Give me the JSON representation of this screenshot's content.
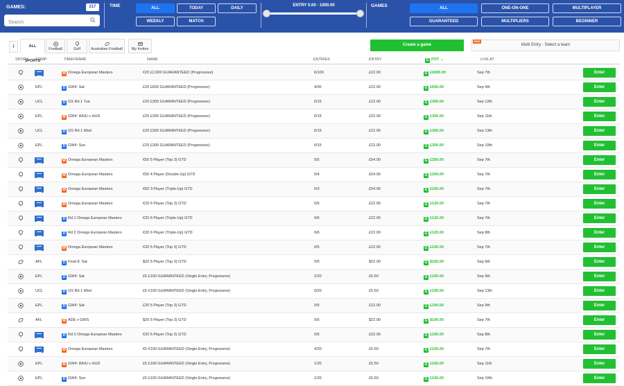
{
  "header": {
    "games_label": "GAMES:",
    "games_count": "217",
    "search_placeholder": "Search",
    "time_label": "TIME",
    "time_filters": [
      "ALL",
      "TODAY",
      "DAILY",
      "WEEKLY",
      "MATCH"
    ],
    "entry_label": "ENTRY 0.00 - 1000.00",
    "games_filter_label": "GAMES",
    "game_filters": [
      "ALL",
      "ONE-ON-ONE",
      "MULTIPLAYER",
      "GUARANTEED",
      "MULTIPLIERS",
      "BEGINNER"
    ],
    "active_time_filter": "ALL",
    "active_game_filter": "ALL"
  },
  "tabs": {
    "info": "i",
    "items": [
      "ALL SPORTS",
      "Football",
      "Golf",
      "Australian Football",
      "My Invites"
    ],
    "active": "ALL SPORTS"
  },
  "actions": {
    "create_label": "Create a game",
    "multi_entry_label": "Multi Entry - Select a team",
    "new_badge": "NEW"
  },
  "table": {
    "headers": {
      "sport": "SPORT",
      "comp": "COMP",
      "timeframe": "TIMEFRAME",
      "name": "NAME",
      "entries": "ENTRIES",
      "entry": "ENTRY",
      "pot": "POT",
      "live_at": "LIVE AT"
    },
    "enter_label": "Enter",
    "rows": [
      {
        "sport": "golf",
        "comp": "",
        "tf_badge": "W",
        "timeframe": "Omega European Masters",
        "name": "€20 £2,000 GUARANTEED (Progressive)",
        "entries": "6/100",
        "entry": "£22.00",
        "pot": "£2000.00",
        "live": "Sep 7th"
      },
      {
        "sport": "football",
        "comp": "EPL",
        "tf_badge": "D",
        "timeframe": "GW4: Sat",
        "name": "£20 £600 GUARANTEED (Progressive)",
        "entries": "4/30",
        "entry": "£22.00",
        "pot": "£600.00",
        "live": "Sep 9th"
      },
      {
        "sport": "football",
        "comp": "UCL",
        "tf_badge": "D",
        "timeframe": "GS Rd 1 Tue",
        "name": "£20 £300 GUARANTEED (Progressive)",
        "entries": "0/15",
        "entry": "£22.00",
        "pot": "£300.00",
        "live": "Sep 12th"
      },
      {
        "sport": "football",
        "comp": "EPL",
        "tf_badge": "M",
        "timeframe": "GW4: WHU v HUD",
        "name": "£20 £300 GUARANTEED (Progressive)",
        "entries": "0/15",
        "entry": "£22.00",
        "pot": "£300.00",
        "live": "Sep 11th"
      },
      {
        "sport": "football",
        "comp": "UCL",
        "tf_badge": "D",
        "timeframe": "GS Rd 1 Wed",
        "name": "£20 £300 GUARANTEED (Progressive)",
        "entries": "0/15",
        "entry": "£22.00",
        "pot": "£300.00",
        "live": "Sep 13th"
      },
      {
        "sport": "football",
        "comp": "EPL",
        "tf_badge": "D",
        "timeframe": "GW4: Sun",
        "name": "£20 £300 GUARANTEED (Progressive)",
        "entries": "0/15",
        "entry": "£22.00",
        "pot": "£300.00",
        "live": "Sep 10th"
      },
      {
        "sport": "golf",
        "comp": "",
        "tf_badge": "W",
        "timeframe": "Omega European Masters",
        "name": "€50 5 Player (Top 3) GTD",
        "entries": "0/5",
        "entry": "£54.00",
        "pot": "£250.00",
        "live": "Sep 7th"
      },
      {
        "sport": "golf",
        "comp": "",
        "tf_badge": "W",
        "timeframe": "Omega European Masters",
        "name": "€50 4 Player (Double-Up) GTD",
        "entries": "0/4",
        "entry": "£54.00",
        "pot": "£200.00",
        "live": "Sep 7th"
      },
      {
        "sport": "golf",
        "comp": "",
        "tf_badge": "W",
        "timeframe": "Omega European Masters",
        "name": "€50 3 Player (Triple-Up) GTD",
        "entries": "0/3",
        "entry": "£54.00",
        "pot": "£150.00",
        "live": "Sep 7th"
      },
      {
        "sport": "golf",
        "comp": "",
        "tf_badge": "W",
        "timeframe": "Omega European Masters",
        "name": "€20 6 Player (Top 3) GTD",
        "entries": "0/6",
        "entry": "£22.00",
        "pot": "£120.00",
        "live": "Sep 7th"
      },
      {
        "sport": "golf",
        "comp": "",
        "tf_badge": "D",
        "timeframe": "Rd 1 Omega European Masters",
        "name": "€20 6 Player (Triple-Up) GTD",
        "entries": "0/6",
        "entry": "£22.00",
        "pot": "£120.00",
        "live": "Sep 7th"
      },
      {
        "sport": "golf",
        "comp": "",
        "tf_badge": "D",
        "timeframe": "Rd 2 Omega European Masters",
        "name": "€20 6 Player (Triple-Up) GTD",
        "entries": "0/6",
        "entry": "£22.00",
        "pot": "£120.00",
        "live": "Sep 8th"
      },
      {
        "sport": "golf",
        "comp": "",
        "tf_badge": "W",
        "timeframe": "Omega European Masters",
        "name": "€20 5 Player (Top 3) GTD",
        "entries": "0/5",
        "entry": "£22.00",
        "pot": "£100.00",
        "live": "Sep 7th"
      },
      {
        "sport": "afl",
        "comp": "AFL",
        "tf_badge": "D",
        "timeframe": "Final 8: Sat",
        "name": "$20 5 Player (Top 3) GTD",
        "entries": "0/5",
        "entry": "$22.00",
        "pot": "$100.00",
        "live": "Sep 9th"
      },
      {
        "sport": "football",
        "comp": "EPL",
        "tf_badge": "D",
        "timeframe": "GW4: Sat",
        "name": "£5 £100 GUARANTEED (Single Entry, Progressive)",
        "entries": "2/20",
        "entry": "£5.50",
        "pot": "£100.00",
        "live": "Sep 9th"
      },
      {
        "sport": "football",
        "comp": "UCL",
        "tf_badge": "D",
        "timeframe": "GS Rd 1 Wed",
        "name": "£5 €100 GUARANTEED (Single Entry, Progressive)",
        "entries": "0/20",
        "entry": "£5.50",
        "pot": "£100.00",
        "live": "Sep 13th"
      },
      {
        "sport": "football",
        "comp": "EPL",
        "tf_badge": "D",
        "timeframe": "GW4: Sat",
        "name": "£20 5 Player (Top 3) GTD",
        "entries": "0/5",
        "entry": "£22.00",
        "pot": "£100.00",
        "live": "Sep 9th"
      },
      {
        "sport": "afl",
        "comp": "AFL",
        "tf_badge": "M",
        "timeframe": "ADE v GWS",
        "name": "$20 5 Player (Top 3) GTD",
        "entries": "0/5",
        "entry": "$22.00",
        "pot": "$100.00",
        "live": "Sep 7th"
      },
      {
        "sport": "golf",
        "comp": "",
        "tf_badge": "D",
        "timeframe": "Rd 2 Omega European Masters",
        "name": "€20 5 Player (Top 3) GTD",
        "entries": "0/5",
        "entry": "£22.00",
        "pot": "£100.00",
        "live": "Sep 8th"
      },
      {
        "sport": "golf",
        "comp": "",
        "tf_badge": "W",
        "timeframe": "Omega European Masters",
        "name": "€5 €100 GUARANTEED (Single Entry, Progressive)",
        "entries": "4/20",
        "entry": "£5.50",
        "pot": "£100.00",
        "live": "Sep 7th"
      },
      {
        "sport": "football",
        "comp": "EPL",
        "tf_badge": "M",
        "timeframe": "GW4: WHU v HUD",
        "name": "£5 £100 GUARANTEED (Single Entry, Progressive)",
        "entries": "1/20",
        "entry": "£5.50",
        "pot": "£100.00",
        "live": "Sep 11th"
      },
      {
        "sport": "football",
        "comp": "EPL",
        "tf_badge": "D",
        "timeframe": "GW4: Sun",
        "name": "£5 £100 GUARANTEED (Single Entry, Progressive)",
        "entries": "1/20",
        "entry": "£5.50",
        "pot": "£100.00",
        "live": "Sep 10th"
      }
    ]
  },
  "colors": {
    "header_bg": "#2a52a9",
    "active_filter": "#1e74ef",
    "accent_green": "#21c033",
    "badge_orange": "#f26a22"
  }
}
